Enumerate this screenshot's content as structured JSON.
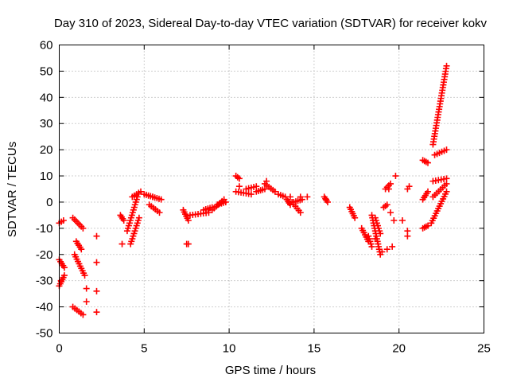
{
  "chart_data": {
    "type": "scatter",
    "title": "Day 310 of 2023, Sidereal Day-to-day VTEC variation (SDTVAR) for receiver kokv",
    "xlabel": "GPS time / hours",
    "ylabel": "SDTVAR / TECUs",
    "xlim": [
      0,
      25
    ],
    "ylim": [
      -50,
      60
    ],
    "xticks": [
      0,
      5,
      10,
      15,
      20,
      25
    ],
    "yticks": [
      -50,
      -40,
      -30,
      -20,
      -10,
      0,
      10,
      20,
      30,
      40,
      50,
      60
    ],
    "grid": true,
    "marker": "+",
    "color": "#ff0000",
    "series": [
      {
        "name": "SDTVAR",
        "segments": [
          {
            "x": [
              0.0,
              0.25
            ],
            "y": [
              -8,
              -7
            ]
          },
          {
            "x": [
              0.0,
              0.3
            ],
            "y": [
              -22,
              -25
            ]
          },
          {
            "x": [
              0.0,
              0.3
            ],
            "y": [
              -32,
              -28
            ]
          },
          {
            "x": [
              0.8,
              1.4
            ],
            "y": [
              -6,
              -10
            ]
          },
          {
            "x": [
              0.8,
              1.4
            ],
            "y": [
              -40,
              -43
            ]
          },
          {
            "x": [
              0.9,
              1.5
            ],
            "y": [
              -20,
              -28
            ]
          },
          {
            "x": [
              1.0,
              1.3
            ],
            "y": [
              -15,
              -18
            ]
          },
          {
            "x": [
              3.6,
              3.8
            ],
            "y": [
              -5,
              -7
            ]
          },
          {
            "x": [
              4.0,
              4.6
            ],
            "y": [
              -11,
              2
            ]
          },
          {
            "x": [
              4.2,
              4.7
            ],
            "y": [
              -16,
              -6
            ]
          },
          {
            "x": [
              4.3,
              4.8
            ],
            "y": [
              2,
              4
            ]
          },
          {
            "x": [
              5.0,
              5.5
            ],
            "y": [
              3,
              2
            ]
          },
          {
            "x": [
              5.5,
              6.0
            ],
            "y": [
              2,
              1
            ]
          },
          {
            "x": [
              5.3,
              5.9
            ],
            "y": [
              -1,
              -4
            ]
          },
          {
            "x": [
              7.3,
              7.6
            ],
            "y": [
              -3,
              -7
            ]
          },
          {
            "x": [
              7.7,
              8.8
            ],
            "y": [
              -5,
              -4
            ]
          },
          {
            "x": [
              8.5,
              9.0
            ],
            "y": [
              -3,
              -2
            ]
          },
          {
            "x": [
              9.0,
              9.7
            ],
            "y": [
              -3,
              1
            ]
          },
          {
            "x": [
              9.3,
              9.8
            ],
            "y": [
              -1,
              0
            ]
          },
          {
            "x": [
              10.4,
              10.6
            ],
            "y": [
              10,
              9
            ]
          },
          {
            "x": [
              10.4,
              11.3
            ],
            "y": [
              4,
              3
            ]
          },
          {
            "x": [
              11.0,
              11.6
            ],
            "y": [
              5,
              6
            ]
          },
          {
            "x": [
              11.6,
              12.1
            ],
            "y": [
              4,
              5
            ]
          },
          {
            "x": [
              12.1,
              12.7
            ],
            "y": [
              7,
              4
            ]
          },
          {
            "x": [
              12.9,
              13.3
            ],
            "y": [
              3,
              2
            ]
          },
          {
            "x": [
              13.4,
              13.6
            ],
            "y": [
              1,
              -1
            ]
          },
          {
            "x": [
              13.7,
              14.2
            ],
            "y": [
              0,
              -4
            ]
          },
          {
            "x": [
              13.8,
              14.3
            ],
            "y": [
              0,
              1
            ]
          },
          {
            "x": [
              15.6,
              15.8
            ],
            "y": [
              2,
              0
            ]
          },
          {
            "x": [
              17.1,
              17.4
            ],
            "y": [
              -2,
              -6
            ]
          },
          {
            "x": [
              17.8,
              18.2
            ],
            "y": [
              -10,
              -15
            ]
          },
          {
            "x": [
              18.2,
              18.4
            ],
            "y": [
              -13,
              -17
            ]
          },
          {
            "x": [
              18.4,
              18.9
            ],
            "y": [
              -5,
              -20
            ]
          },
          {
            "x": [
              18.6,
              18.9
            ],
            "y": [
              -6,
              -12
            ]
          },
          {
            "x": [
              19.2,
              19.5
            ],
            "y": [
              5,
              7
            ]
          },
          {
            "x": [
              19.1,
              19.3
            ],
            "y": [
              -2,
              -1
            ]
          },
          {
            "x": [
              21.4,
              21.7
            ],
            "y": [
              16,
              15
            ]
          },
          {
            "x": [
              21.4,
              21.7
            ],
            "y": [
              1,
              4
            ]
          },
          {
            "x": [
              21.4,
              21.7
            ],
            "y": [
              -10,
              -9
            ]
          },
          {
            "x": [
              21.9,
              22.8
            ],
            "y": [
              -8,
              4
            ]
          },
          {
            "x": [
              22.0,
              22.8
            ],
            "y": [
              2,
              7
            ]
          },
          {
            "x": [
              22.0,
              22.8
            ],
            "y": [
              8,
              9
            ]
          },
          {
            "x": [
              22.1,
              22.8
            ],
            "y": [
              18,
              20
            ]
          },
          {
            "x": [
              22.0,
              22.8
            ],
            "y": [
              22,
              52
            ]
          }
        ],
        "points": [
          [
            0.1,
            -30
          ],
          [
            1.6,
            -33
          ],
          [
            1.6,
            -38
          ],
          [
            2.2,
            -13
          ],
          [
            2.2,
            -23
          ],
          [
            2.2,
            -34
          ],
          [
            2.2,
            -42
          ],
          [
            3.7,
            -16
          ],
          [
            7.5,
            -16
          ],
          [
            7.6,
            -16
          ],
          [
            10.6,
            6
          ],
          [
            12.2,
            8
          ],
          [
            13.6,
            2
          ],
          [
            14.2,
            2
          ],
          [
            14.6,
            2
          ],
          [
            15.7,
            1
          ],
          [
            18.6,
            -14
          ],
          [
            19.0,
            -19
          ],
          [
            19.3,
            -18
          ],
          [
            19.4,
            5
          ],
          [
            19.5,
            -4
          ],
          [
            19.6,
            -17
          ],
          [
            19.7,
            -7
          ],
          [
            19.8,
            10
          ],
          [
            20.2,
            -7
          ],
          [
            20.5,
            -11
          ],
          [
            20.5,
            -13
          ],
          [
            20.5,
            5
          ],
          [
            20.6,
            6
          ]
        ]
      }
    ]
  }
}
